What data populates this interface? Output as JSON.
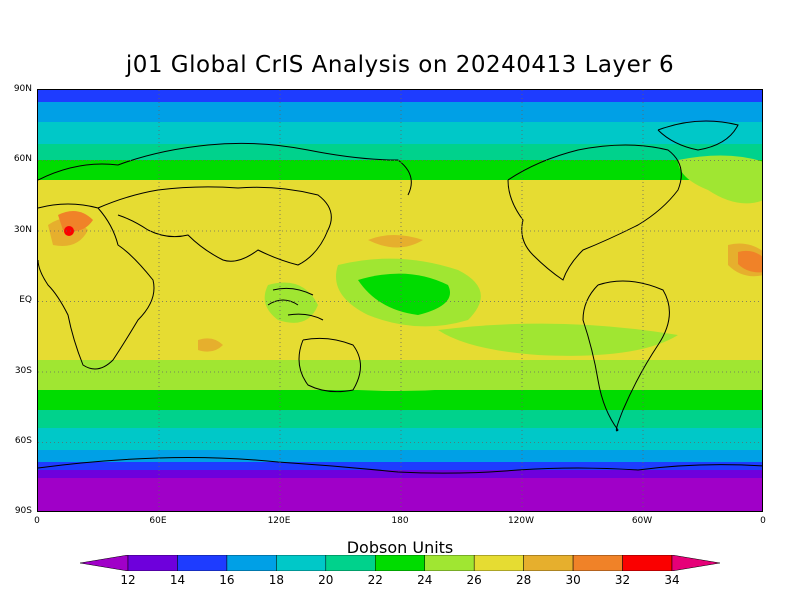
{
  "title": "j01 Global CrIS Analysis on 20240413 Layer 6",
  "lat_labels": [
    "90N",
    "60N",
    "30N",
    "EQ",
    "30S",
    "60S",
    "90S"
  ],
  "lon_labels": [
    "0",
    "60E",
    "120E",
    "180",
    "120W",
    "60W",
    "0"
  ],
  "colorbar": {
    "title": "Dobson Units",
    "ticks": [
      "12",
      "14",
      "16",
      "18",
      "20",
      "22",
      "24",
      "26",
      "28",
      "30",
      "32",
      "34"
    ],
    "colors": [
      "#a000c8",
      "#6e00dc",
      "#1e3cff",
      "#00a0e6",
      "#00c8c8",
      "#00d28c",
      "#00dc00",
      "#a0e632",
      "#e6dc32",
      "#e6af2d",
      "#f08228",
      "#fa0000",
      "#e60078"
    ]
  }
}
